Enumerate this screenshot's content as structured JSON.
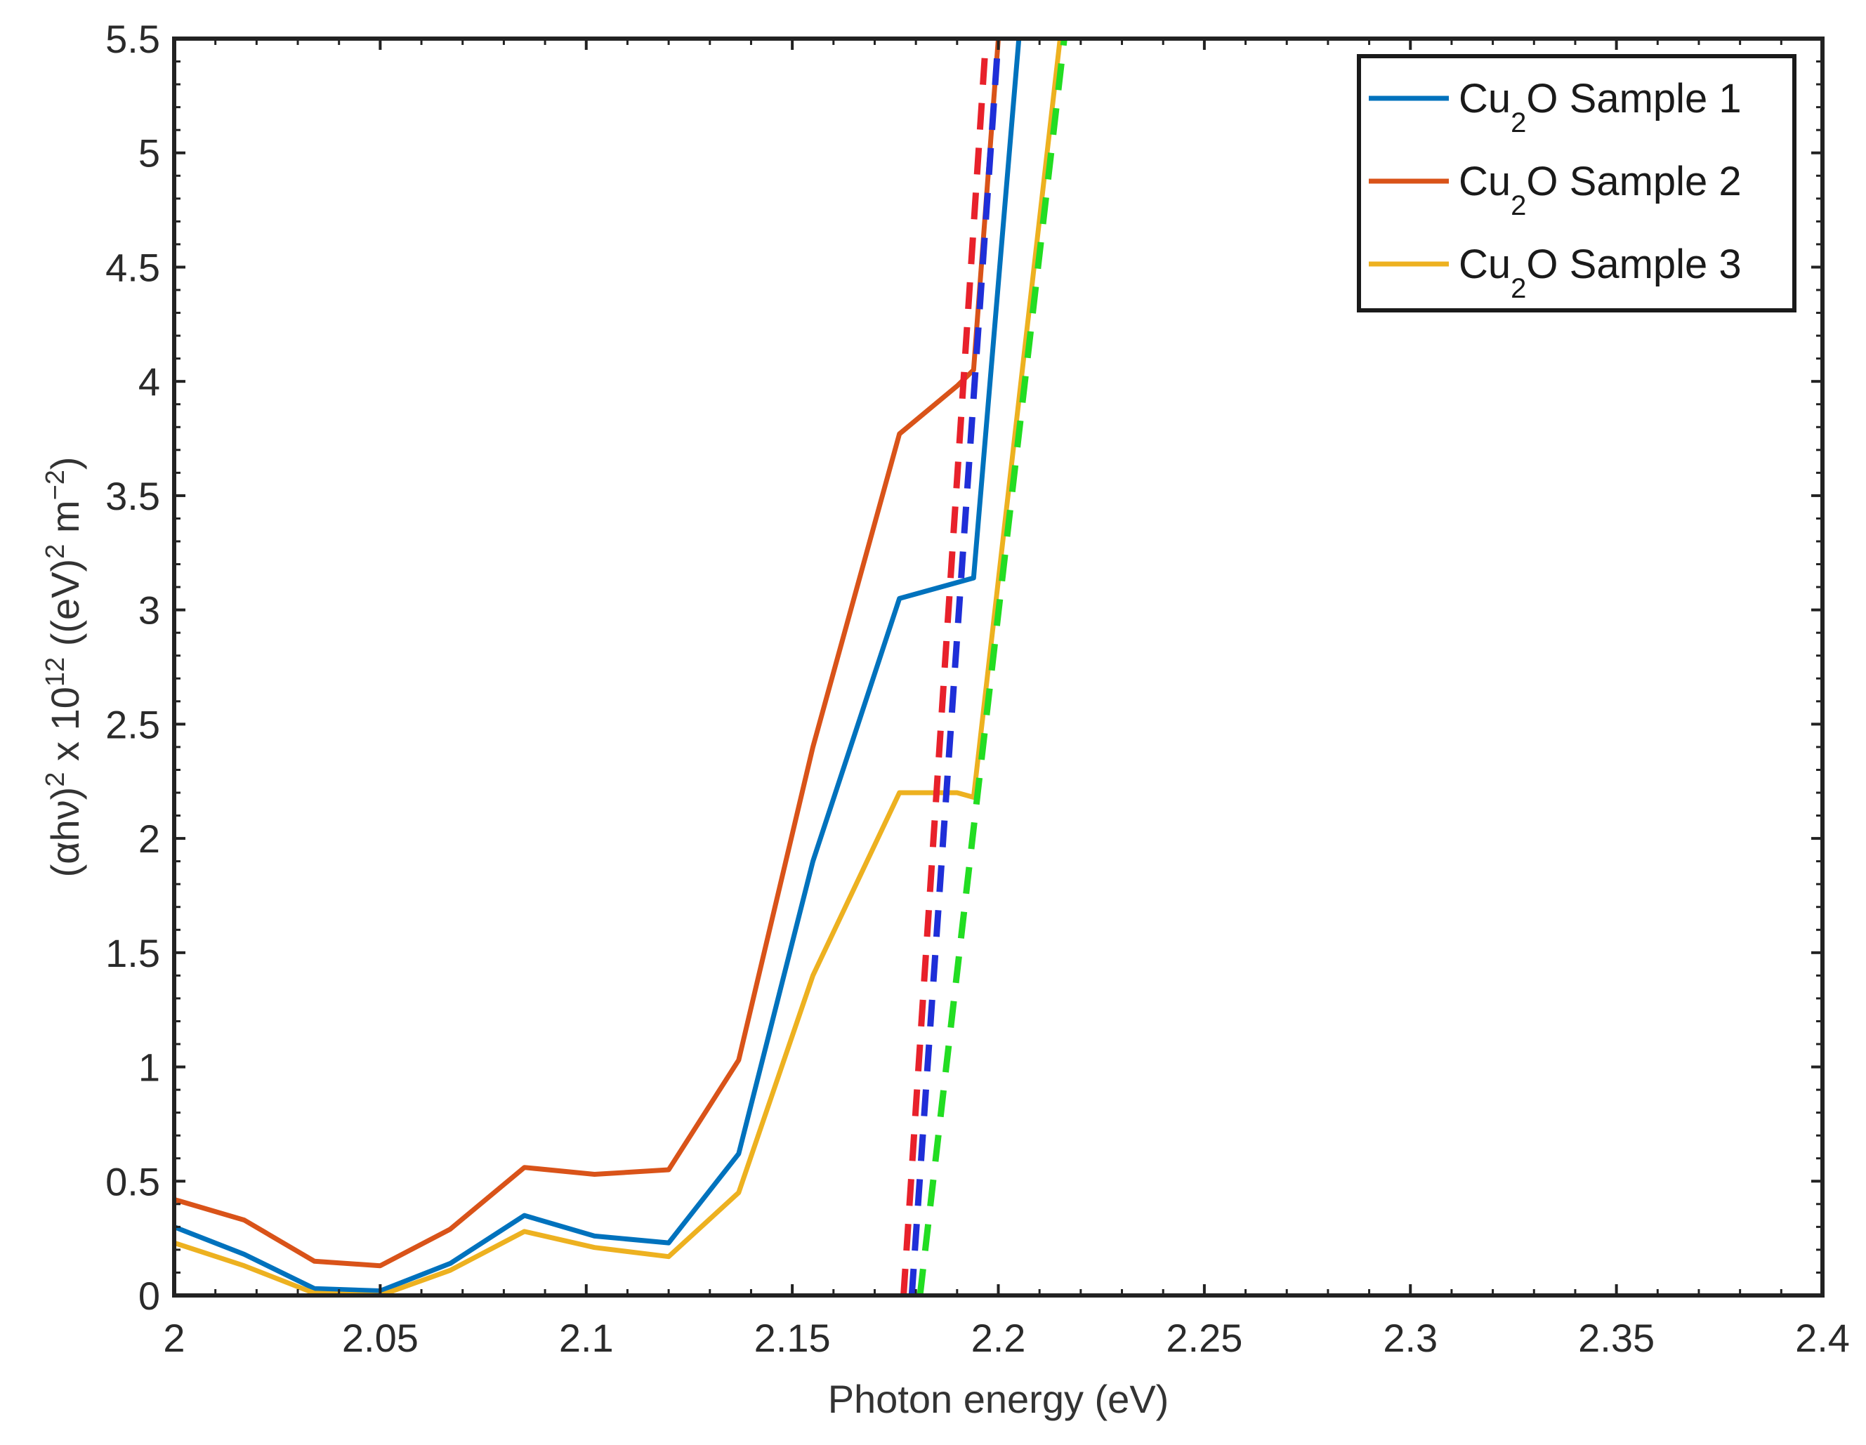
{
  "chart_data": {
    "type": "line",
    "title": "",
    "xlabel": "Photon energy (eV)",
    "ylabel": {
      "prefix": "(αhν)",
      "prefix_sup": "2",
      "mid": " x 10",
      "mid_sup": "12",
      "unit_open": " ((eV)",
      "unit_sup1": "2",
      "unit_m": " m",
      "unit_sup2": "−2",
      "unit_close": ")"
    },
    "xlim": [
      2.0,
      2.4
    ],
    "ylim": [
      0,
      5.5
    ],
    "xticks": [
      2,
      2.05,
      2.1,
      2.15,
      2.2,
      2.25,
      2.3,
      2.35,
      2.4
    ],
    "xtick_labels": [
      "2",
      "2.05",
      "2.1",
      "2.15",
      "2.2",
      "2.25",
      "2.3",
      "2.35",
      "2.4"
    ],
    "yticks": [
      0,
      0.5,
      1,
      1.5,
      2,
      2.5,
      3,
      3.5,
      4,
      4.5,
      5,
      5.5
    ],
    "ytick_labels": [
      "0",
      "0.5",
      "1",
      "1.5",
      "2",
      "2.5",
      "3",
      "3.5",
      "4",
      "4.5",
      "5",
      "5.5"
    ],
    "legend_position": "top-right",
    "series": [
      {
        "name": "Cu2O Sample 1",
        "label_main": "Cu",
        "label_sub": "2",
        "label_rest": "O Sample 1",
        "color": "#0072BD",
        "x": [
          2.0,
          2.017,
          2.034,
          2.05,
          2.067,
          2.085,
          2.102,
          2.12,
          2.137,
          2.155,
          2.176,
          2.19,
          2.194,
          2.205
        ],
        "y": [
          0.3,
          0.18,
          0.03,
          0.02,
          0.14,
          0.35,
          0.26,
          0.23,
          0.62,
          1.9,
          3.05,
          3.12,
          3.14,
          5.5
        ]
      },
      {
        "name": "Cu2O Sample 2",
        "label_main": "Cu",
        "label_sub": "2",
        "label_rest": "O Sample 2",
        "color": "#D95319",
        "x": [
          2.0,
          2.017,
          2.034,
          2.05,
          2.067,
          2.085,
          2.102,
          2.12,
          2.137,
          2.155,
          2.176,
          2.19,
          2.194,
          2.2
        ],
        "y": [
          0.42,
          0.33,
          0.15,
          0.13,
          0.29,
          0.56,
          0.53,
          0.55,
          1.03,
          2.4,
          3.77,
          3.98,
          4.05,
          5.5
        ]
      },
      {
        "name": "Cu2O Sample 3",
        "label_main": "Cu",
        "label_sub": "2",
        "label_rest": "O Sample 3",
        "color": "#EDB120",
        "x": [
          2.0,
          2.017,
          2.034,
          2.05,
          2.067,
          2.085,
          2.102,
          2.12,
          2.137,
          2.155,
          2.176,
          2.19,
          2.194,
          2.215
        ],
        "y": [
          0.23,
          0.13,
          0.01,
          0.0,
          0.11,
          0.28,
          0.21,
          0.17,
          0.45,
          1.4,
          2.2,
          2.2,
          2.18,
          5.5
        ]
      }
    ],
    "fit_lines": [
      {
        "name": "sample-2-fit",
        "color": "#E8212B",
        "x": [
          2.177,
          2.197
        ],
        "y": [
          0,
          5.5
        ]
      },
      {
        "name": "sample-1-fit",
        "color": "#1F2FD8",
        "x": [
          2.179,
          2.2
        ],
        "y": [
          0,
          5.5
        ]
      },
      {
        "name": "sample-3-fit",
        "color": "#22DD22",
        "x": [
          2.181,
          2.216
        ],
        "y": [
          0,
          5.5
        ]
      }
    ]
  }
}
